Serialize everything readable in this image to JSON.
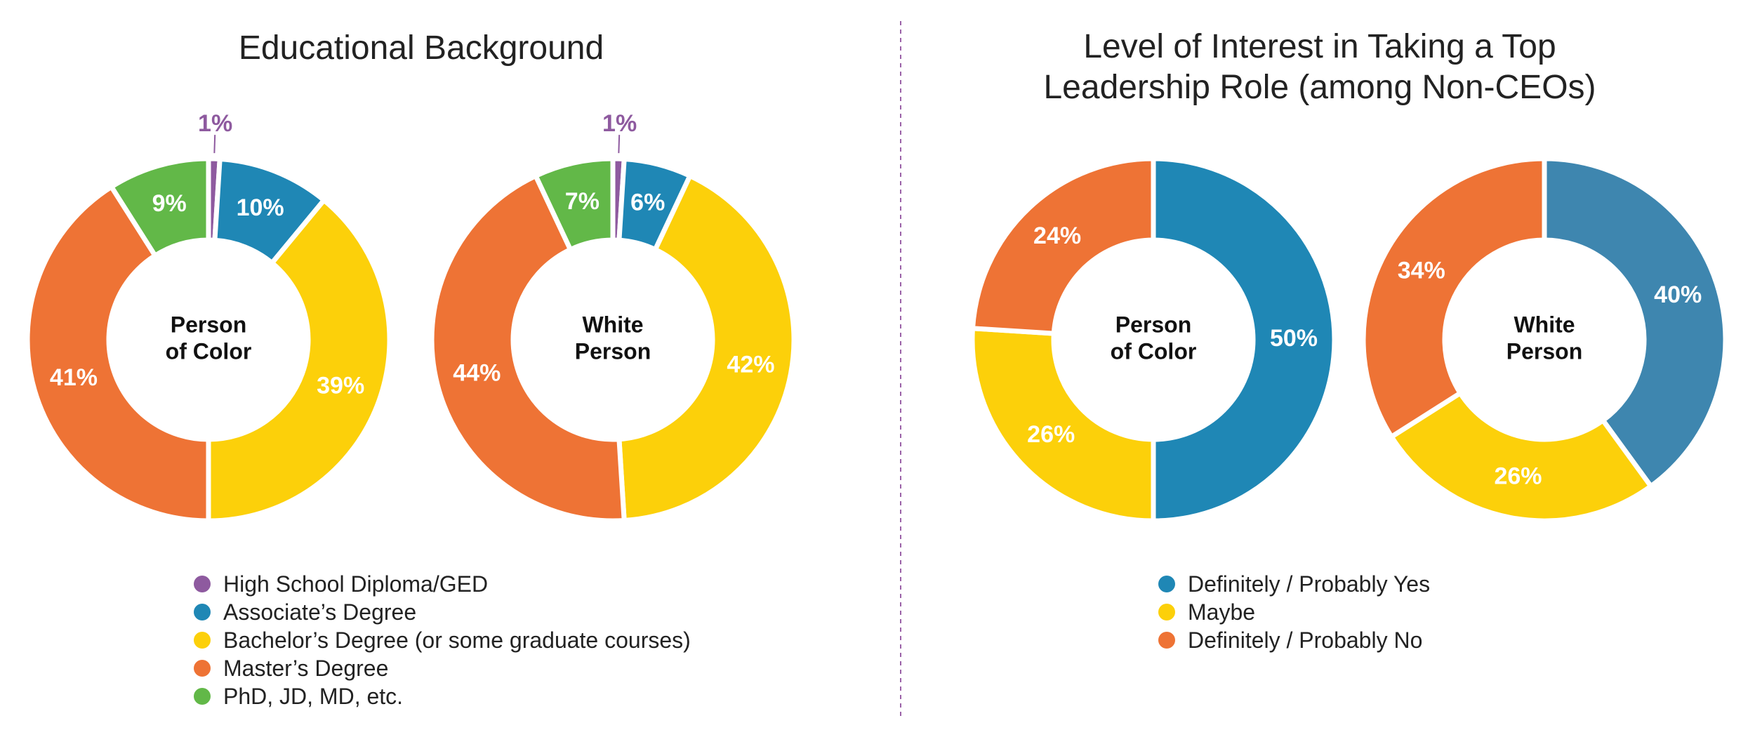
{
  "panels": {
    "left": {
      "title": "Educational Background"
    },
    "right": {
      "title_line1": "Level of Interest in Taking a Top",
      "title_line2": "Leadership Role (among Non-CEOs)"
    }
  },
  "chart_data": [
    {
      "type": "pie",
      "variant": "donut",
      "group": "Educational Background",
      "center_label": [
        "Person",
        "of Color"
      ],
      "slices": [
        {
          "category": "High School Diploma/GED",
          "value": 1,
          "label": "1%",
          "color": "#8e5a9f"
        },
        {
          "category": "Associate’s Degree",
          "value": 10,
          "label": "10%",
          "color": "#1f87b5"
        },
        {
          "category": "Bachelor’s Degree (or some graduate courses)",
          "value": 39,
          "label": "39%",
          "color": "#fcd00a"
        },
        {
          "category": "Master’s Degree",
          "value": 41,
          "label": "41%",
          "color": "#ee7335"
        },
        {
          "category": "PhD, JD, MD, etc.",
          "value": 9,
          "label": "9%",
          "color": "#62b848"
        }
      ]
    },
    {
      "type": "pie",
      "variant": "donut",
      "group": "Educational Background",
      "center_label": [
        "White",
        "Person"
      ],
      "slices": [
        {
          "category": "High School Diploma/GED",
          "value": 1,
          "label": "1%",
          "color": "#8e5a9f"
        },
        {
          "category": "Associate’s Degree",
          "value": 6,
          "label": "6%",
          "color": "#1f87b5"
        },
        {
          "category": "Bachelor’s Degree (or some graduate courses)",
          "value": 42,
          "label": "42%",
          "color": "#fcd00a"
        },
        {
          "category": "Master’s Degree",
          "value": 44,
          "label": "44%",
          "color": "#ee7335"
        },
        {
          "category": "PhD, JD, MD, etc.",
          "value": 7,
          "label": "7%",
          "color": "#62b848"
        }
      ]
    },
    {
      "type": "pie",
      "variant": "donut",
      "group": "Level of Interest in Taking a Top Leadership Role (among Non-CEOs)",
      "center_label": [
        "Person",
        "of Color"
      ],
      "slices": [
        {
          "category": "Definitely / Probably Yes",
          "value": 50,
          "label": "50%",
          "color": "#1f87b5"
        },
        {
          "category": "Maybe",
          "value": 26,
          "label": "26%",
          "color": "#fcd00a"
        },
        {
          "category": "Definitely / Probably No",
          "value": 24,
          "label": "24%",
          "color": "#ee7335"
        }
      ]
    },
    {
      "type": "pie",
      "variant": "donut",
      "group": "Level of Interest in Taking a Top Leadership Role (among Non-CEOs)",
      "center_label": [
        "White",
        "Person"
      ],
      "slices": [
        {
          "category": "Definitely / Probably Yes",
          "value": 40,
          "label": "40%",
          "color": "#3e86af"
        },
        {
          "category": "Maybe",
          "value": 26,
          "label": "26%",
          "color": "#fcd00a"
        },
        {
          "category": "Definitely / Probably No",
          "value": 34,
          "label": "34%",
          "color": "#ee7335"
        }
      ]
    }
  ],
  "legends": {
    "left": [
      {
        "label": "High School Diploma/GED",
        "color": "#8e5a9f"
      },
      {
        "label": "Associate’s Degree",
        "color": "#1f87b5"
      },
      {
        "label": "Bachelor’s Degree (or some graduate courses)",
        "color": "#fcd00a"
      },
      {
        "label": "Master’s Degree",
        "color": "#ee7335"
      },
      {
        "label": "PhD, JD, MD, etc.",
        "color": "#62b848"
      }
    ],
    "right": [
      {
        "label": "Definitely / Probably Yes",
        "color": "#1f87b5"
      },
      {
        "label": "Maybe",
        "color": "#fcd00a"
      },
      {
        "label": "Definitely / Probably No",
        "color": "#ee7335"
      }
    ]
  }
}
